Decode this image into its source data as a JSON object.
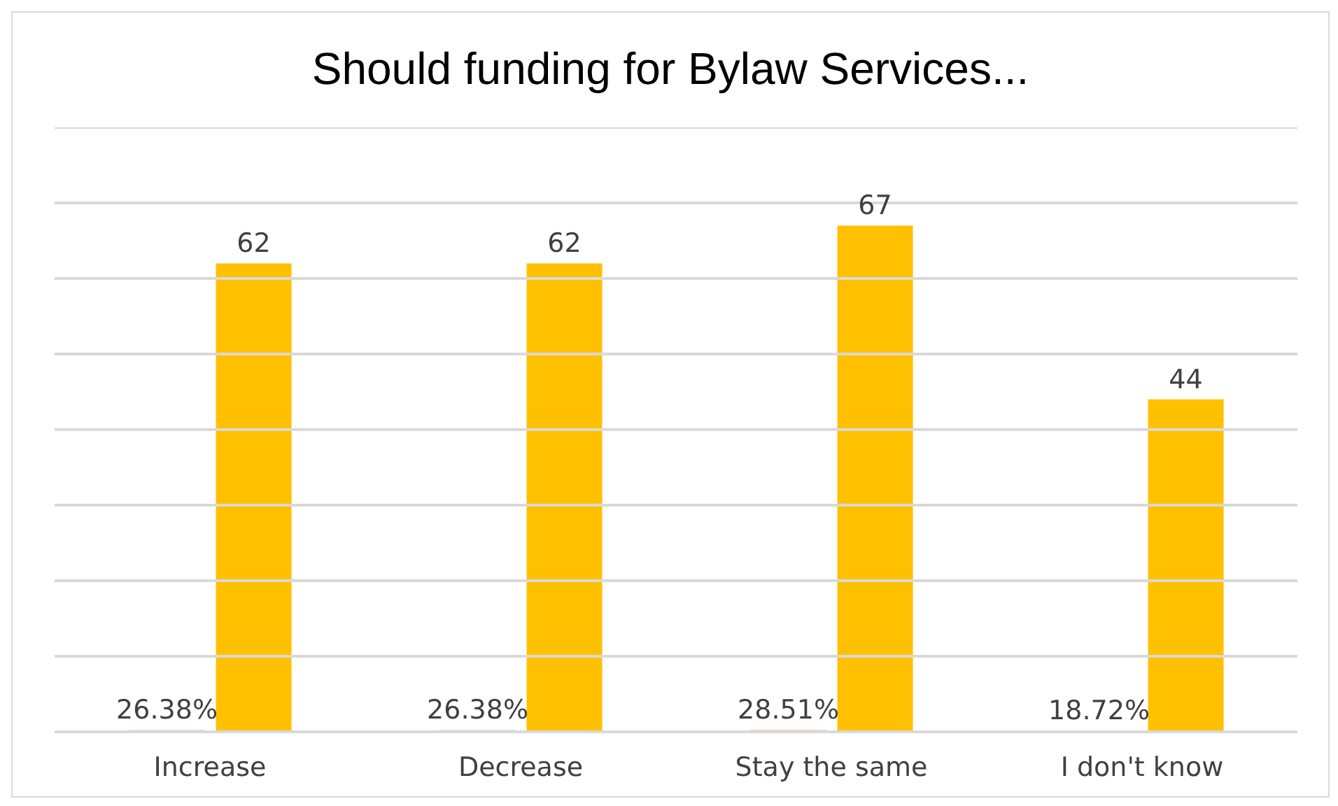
{
  "chart_data": {
    "type": "bar",
    "title": "Should funding for Bylaw Services...",
    "categories": [
      "Increase",
      "Decrease",
      "Stay the same",
      "I don't know"
    ],
    "series": [
      {
        "color": "#f8cbad",
        "values": [
          0.2638,
          0.2638,
          0.2851,
          0.1872
        ],
        "value_labels": [
          "26.38%",
          "26.38%",
          "28.51%",
          "18.72%"
        ]
      },
      {
        "color": "#ffc000",
        "values": [
          62,
          62,
          67,
          44
        ],
        "value_labels": [
          "62",
          "62",
          "67",
          "44"
        ]
      }
    ],
    "ylim": [
      0,
      80
    ],
    "yticks": [
      {
        "value": 0,
        "label": null
      },
      {
        "value": 10,
        "label": null
      },
      {
        "value": 20,
        "label": null
      },
      {
        "value": 30,
        "label": null
      },
      {
        "value": 40,
        "label": null
      },
      {
        "value": 50,
        "label": null
      },
      {
        "value": 60,
        "label": null
      },
      {
        "value": 70,
        "label": null
      },
      {
        "value": 80,
        "label": null
      }
    ],
    "grid": "y",
    "legend": false,
    "tick_labels": "x"
  }
}
